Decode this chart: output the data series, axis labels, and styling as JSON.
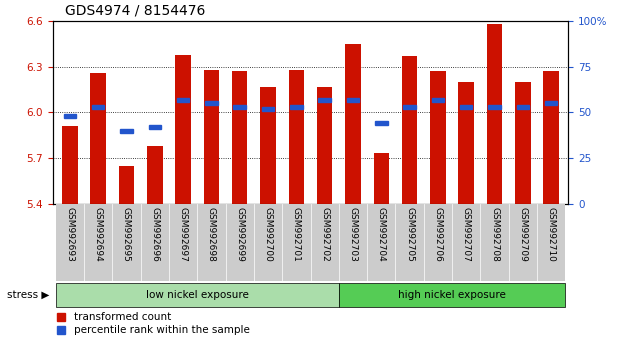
{
  "title": "GDS4974 / 8154476",
  "samples": [
    "GSM992693",
    "GSM992694",
    "GSM992695",
    "GSM992696",
    "GSM992697",
    "GSM992698",
    "GSM992699",
    "GSM992700",
    "GSM992701",
    "GSM992702",
    "GSM992703",
    "GSM992704",
    "GSM992705",
    "GSM992706",
    "GSM992707",
    "GSM992708",
    "GSM992709",
    "GSM992710"
  ],
  "bar_values": [
    5.91,
    6.26,
    5.65,
    5.78,
    6.38,
    6.28,
    6.27,
    6.17,
    6.28,
    6.17,
    6.45,
    5.73,
    6.37,
    6.27,
    6.2,
    6.58,
    6.2,
    6.27
  ],
  "percentile_pct": [
    48,
    53,
    40,
    42,
    57,
    55,
    53,
    52,
    53,
    57,
    57,
    44,
    53,
    57,
    53,
    53,
    53,
    55
  ],
  "bar_color": "#cc1100",
  "percentile_color": "#2255cc",
  "ylim_left": [
    5.4,
    6.6
  ],
  "ylim_right": [
    0,
    100
  ],
  "yticks_left": [
    5.4,
    5.7,
    6.0,
    6.3,
    6.6
  ],
  "yticks_right": [
    0,
    25,
    50,
    75,
    100
  ],
  "hlines": [
    5.7,
    6.0,
    6.3
  ],
  "low_count": 10,
  "high_count": 8,
  "low_label": "low nickel exposure",
  "high_label": "high nickel exposure",
  "stress_label": "stress",
  "low_color": "#aaddaa",
  "high_color": "#55cc55",
  "group_bg": "#cccccc",
  "legend_bar_label": "transformed count",
  "legend_pct_label": "percentile rank within the sample",
  "title_fontsize": 10,
  "tick_fontsize": 6.5,
  "label_fontsize": 7.5
}
